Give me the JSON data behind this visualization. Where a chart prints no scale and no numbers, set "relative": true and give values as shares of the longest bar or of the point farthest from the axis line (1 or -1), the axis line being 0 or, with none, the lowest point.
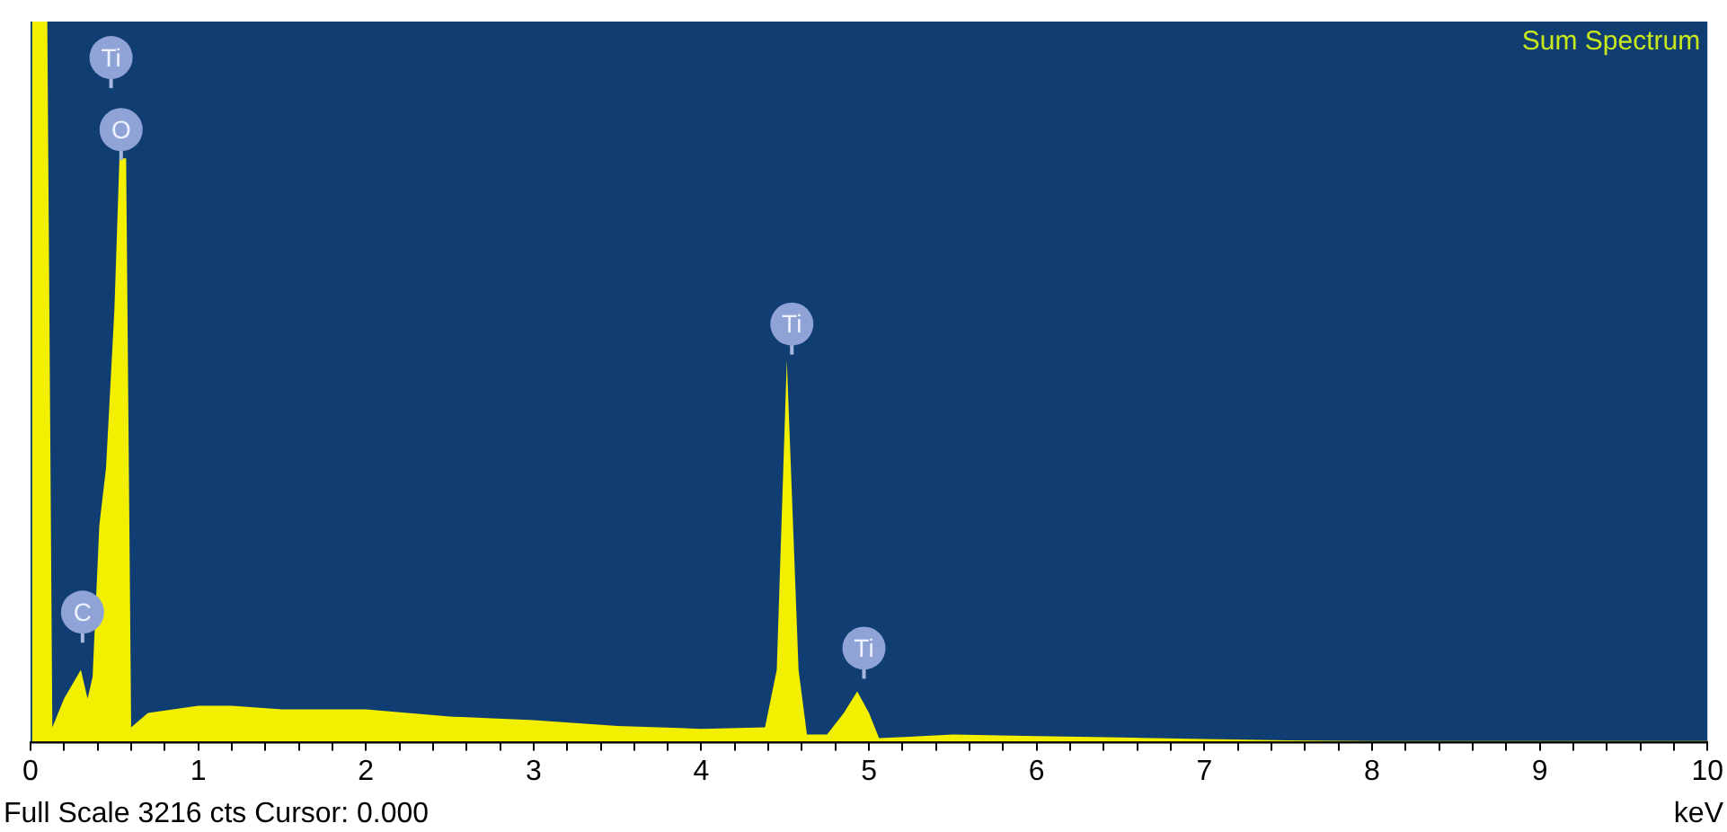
{
  "chart_data": {
    "type": "area",
    "title": "Sum Spectrum",
    "xlabel": "keV",
    "relative": true,
    "marker": "none",
    "grid": false,
    "legend": false,
    "xlim": [
      0,
      10
    ],
    "xticks": [
      0,
      {
        "value": 0.2,
        "label": null
      },
      {
        "value": 0.4,
        "label": null
      },
      {
        "value": 0.6,
        "label": null
      },
      {
        "value": 0.8,
        "label": null
      },
      1,
      {
        "value": 1.2,
        "label": null
      },
      {
        "value": 1.4,
        "label": null
      },
      {
        "value": 1.6,
        "label": null
      },
      {
        "value": 1.8,
        "label": null
      },
      2,
      {
        "value": 2.2,
        "label": null
      },
      {
        "value": 2.4,
        "label": null
      },
      {
        "value": 2.6,
        "label": null
      },
      {
        "value": 2.8,
        "label": null
      },
      3,
      {
        "value": 3.2,
        "label": null
      },
      {
        "value": 3.4,
        "label": null
      },
      {
        "value": 3.6,
        "label": null
      },
      {
        "value": 3.8,
        "label": null
      },
      4,
      {
        "value": 4.2,
        "label": null
      },
      {
        "value": 4.4,
        "label": null
      },
      {
        "value": 4.6,
        "label": null
      },
      {
        "value": 4.8,
        "label": null
      },
      5,
      {
        "value": 5.2,
        "label": null
      },
      {
        "value": 5.4,
        "label": null
      },
      {
        "value": 5.6,
        "label": null
      },
      {
        "value": 5.8,
        "label": null
      },
      6,
      {
        "value": 6.2,
        "label": null
      },
      {
        "value": 6.4,
        "label": null
      },
      {
        "value": 6.6,
        "label": null
      },
      {
        "value": 6.8,
        "label": null
      },
      7,
      {
        "value": 7.2,
        "label": null
      },
      {
        "value": 7.4,
        "label": null
      },
      {
        "value": 7.6,
        "label": null
      },
      {
        "value": 7.8,
        "label": null
      },
      8,
      {
        "value": 8.2,
        "label": null
      },
      {
        "value": 8.4,
        "label": null
      },
      {
        "value": 8.6,
        "label": null
      },
      {
        "value": 8.8,
        "label": null
      },
      9,
      {
        "value": 9.2,
        "label": null
      },
      {
        "value": 9.4,
        "label": null
      },
      {
        "value": 9.6,
        "label": null
      },
      {
        "value": 9.8,
        "label": null
      },
      10
    ],
    "series": [
      {
        "color": "#f2f000",
        "x": [
          0,
          0.01,
          0.1,
          0.13,
          0.2,
          0.25,
          0.3,
          0.34,
          0.37,
          0.41,
          0.45,
          0.5,
          0.53,
          0.57,
          0.6,
          0.7,
          0.85,
          1.0,
          1.2,
          1.5,
          1.8,
          2.0,
          2.5,
          3.0,
          3.5,
          4.0,
          4.38,
          4.45,
          4.51,
          4.58,
          4.63,
          4.75,
          4.85,
          4.93,
          5.0,
          5.06,
          5.5,
          6.0,
          6.5,
          7.0,
          7.5,
          8.0,
          9.0,
          10.0
        ],
        "values": [
          0,
          1,
          1,
          0.02,
          0.06,
          0.08,
          0.1,
          0.06,
          0.09,
          0.3,
          0.38,
          0.6,
          0.81,
          0.81,
          0.02,
          0.04,
          0.045,
          0.05,
          0.05,
          0.045,
          0.045,
          0.045,
          0.035,
          0.03,
          0.022,
          0.018,
          0.02,
          0.1,
          0.53,
          0.1,
          0.01,
          0.01,
          0.04,
          0.07,
          0.04,
          0.005,
          0.01,
          0.008,
          0.006,
          0.004,
          0.002,
          0.001,
          0.001,
          0.001
        ]
      }
    ],
    "annotations": [
      {
        "text": "Ti",
        "x": 0.48,
        "y": 0.95
      },
      {
        "text": "O",
        "x": 0.54,
        "y": 0.85
      },
      {
        "text": "C",
        "x": 0.31,
        "y": 0.18
      },
      {
        "text": "Ti",
        "x": 4.54,
        "y": 0.58
      },
      {
        "text": "Ti",
        "x": 4.97,
        "y": 0.13
      },
      "Full Scale 3216 cts Cursor: 0.000"
    ]
  }
}
